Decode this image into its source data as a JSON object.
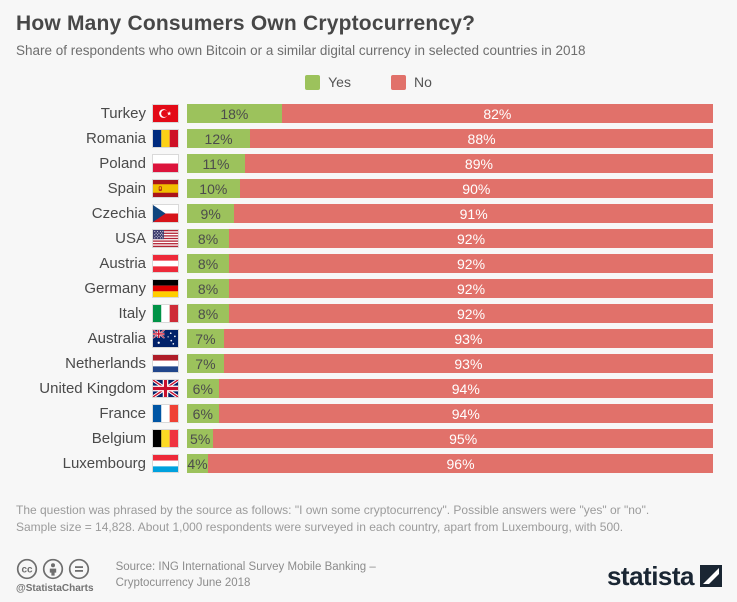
{
  "header": {
    "title": "How Many Consumers Own Cryptocurrency?",
    "subtitle": "Share of respondents who own Bitcoin or a similar digital currency in selected countries in 2018"
  },
  "legend": [
    {
      "label": "Yes",
      "color": "#9cc25c"
    },
    {
      "label": "No",
      "color": "#e1716a"
    }
  ],
  "chart_data": {
    "type": "bar",
    "orientation": "horizontal",
    "stacked": true,
    "title": "How Many Consumers Own Cryptocurrency?",
    "subtitle": "Share of respondents who own Bitcoin or a similar digital currency in selected countries in 2018",
    "value_suffix": "%",
    "xlim": [
      0,
      100
    ],
    "grid": false,
    "legend_position": "top-center",
    "categories": [
      "Turkey",
      "Romania",
      "Poland",
      "Spain",
      "Czechia",
      "USA",
      "Austria",
      "Germany",
      "Italy",
      "Australia",
      "Netherlands",
      "United Kingdom",
      "France",
      "Belgium",
      "Luxembourg"
    ],
    "flags": [
      "turkey",
      "romania",
      "poland",
      "spain",
      "czechia",
      "usa",
      "austria",
      "germany",
      "italy",
      "australia",
      "netherlands",
      "uk",
      "france",
      "belgium",
      "luxembourg"
    ],
    "series": [
      {
        "name": "Yes",
        "color": "#9cc25c",
        "label_color": "#4c4c4c",
        "values": [
          18,
          12,
          11,
          10,
          9,
          8,
          8,
          8,
          8,
          7,
          7,
          6,
          6,
          5,
          4
        ]
      },
      {
        "name": "No",
        "color": "#e1716a",
        "label_color": "#ffffff",
        "values": [
          82,
          88,
          89,
          90,
          91,
          92,
          92,
          92,
          92,
          93,
          93,
          94,
          94,
          95,
          96
        ]
      }
    ]
  },
  "footnote": {
    "line1": "The question was phrased by the source as follows: \"I own some cryptocurrency\". Possible answers were \"yes\" or \"no\".",
    "line2": "Sample size = 14,828. About 1,000 respondents were surveyed in each country, apart from Luxembourg, with 500."
  },
  "footer": {
    "handle": "@StatistaCharts",
    "source_line1": "Source: ING International Survey Mobile Banking –",
    "source_line2": "Cryptocurrency June 2018",
    "brand": "statista"
  }
}
